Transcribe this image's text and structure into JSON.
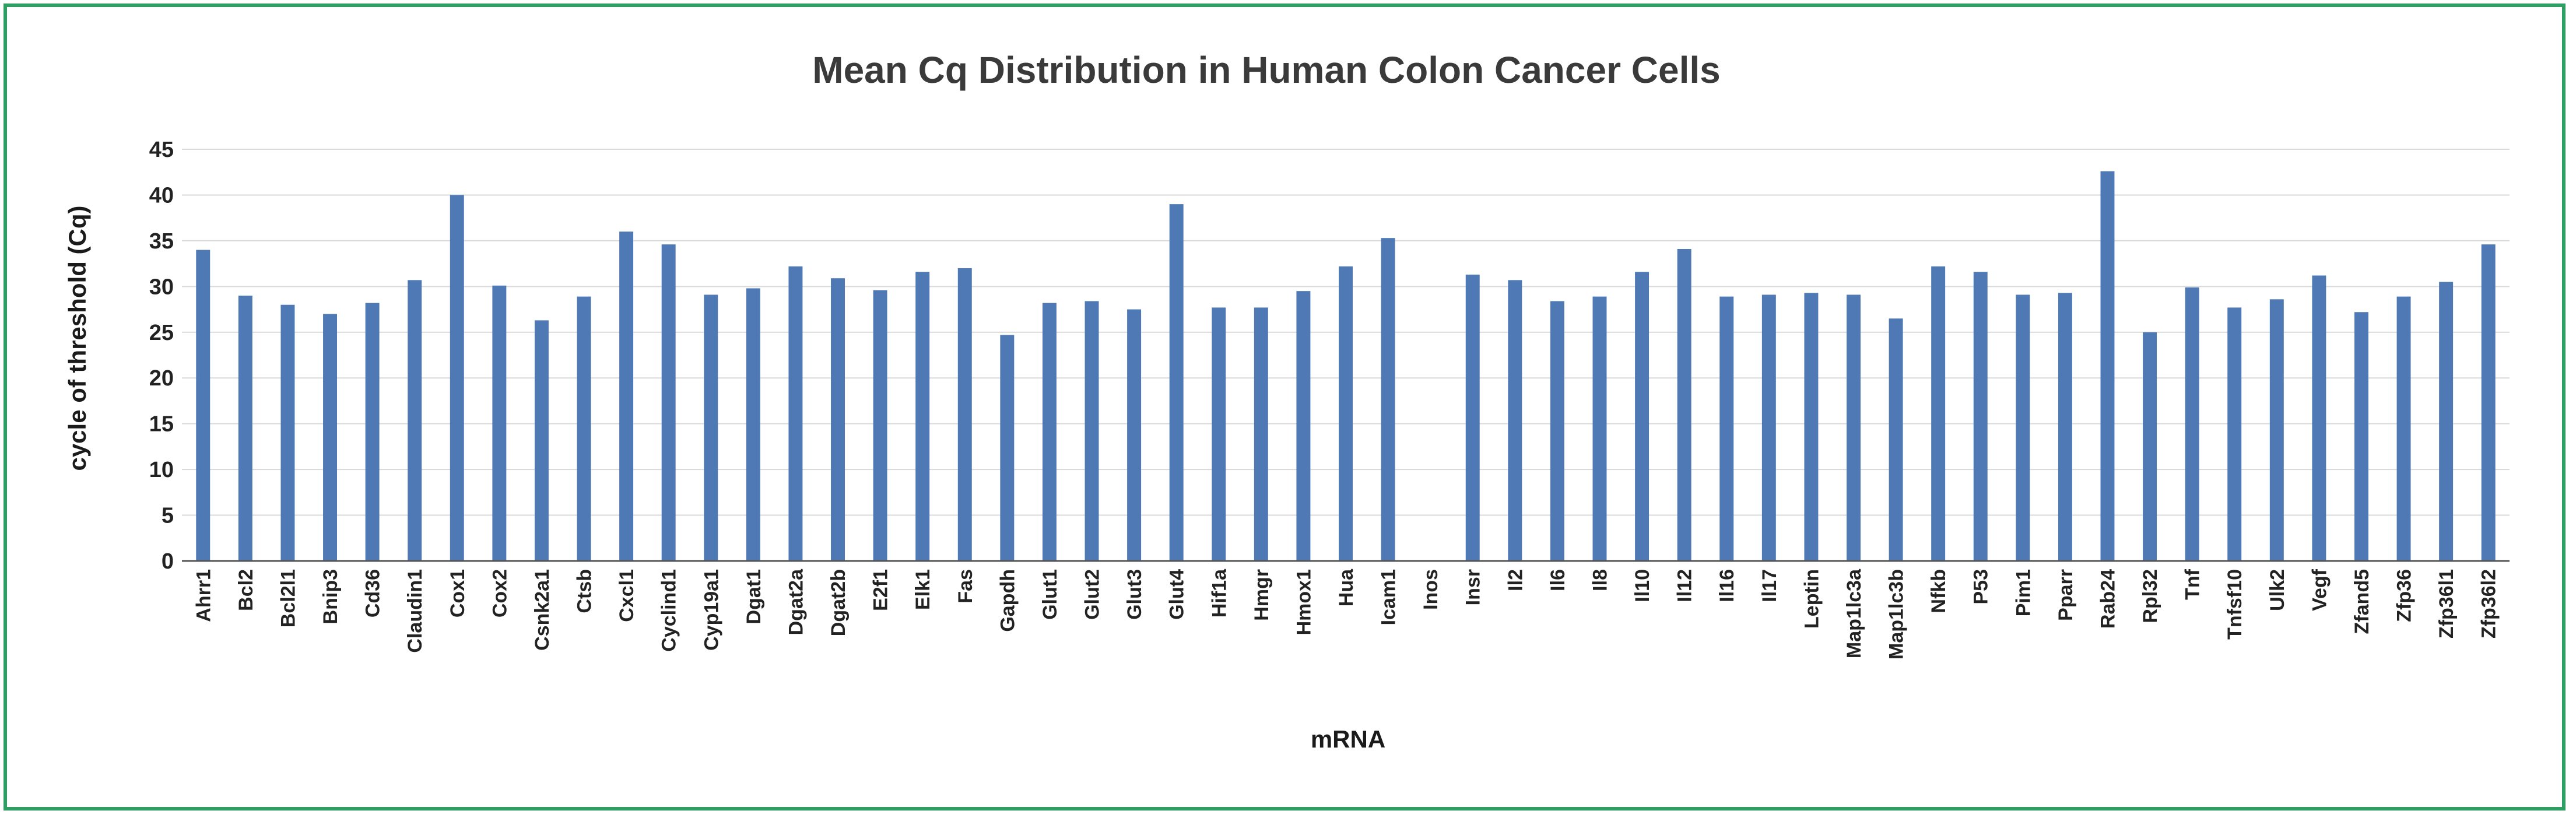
{
  "chart_data": {
    "type": "bar",
    "title": "Mean Cq Distribution in Human Colon Cancer Cells",
    "xlabel": "mRNA",
    "ylabel": "cycle of threshold (Cq)",
    "ylim": [
      0,
      45
    ],
    "yticks": [
      0,
      5,
      10,
      15,
      20,
      25,
      30,
      35,
      40,
      45
    ],
    "grid": true,
    "bar_color": "#4f79b4",
    "grid_color": "#d9d9d9",
    "axis_color": "#555555",
    "categories": [
      "Ahrr1",
      "Bcl2",
      "Bcl2l1",
      "Bnip3",
      "Cd36",
      "Claudin1",
      "Cox1",
      "Cox2",
      "Csnk2a1",
      "Ctsb",
      "Cxcl1",
      "Cyclind1",
      "Cyp19a1",
      "Dgat1",
      "Dgat2a",
      "Dgat2b",
      "E2f1",
      "Elk1",
      "Fas",
      "Gapdh",
      "Glut1",
      "Glut2",
      "Glut3",
      "Glut4",
      "Hif1a",
      "Hmgr",
      "Hmox1",
      "Hua",
      "Icam1",
      "Inos",
      "Insr",
      "Il2",
      "Il6",
      "Il8",
      "Il10",
      "Il12",
      "Il16",
      "Il17",
      "Leptin",
      "Map1lc3a",
      "Map1lc3b",
      "Nfkb",
      "P53",
      "Pim1",
      "Pparr",
      "Rab24",
      "Rpl32",
      "Tnf",
      "Tnfsf10",
      "Ulk2",
      "Vegf",
      "Zfand5",
      "Zfp36",
      "Zfp36l1",
      "Zfp36l2"
    ],
    "values": [
      34,
      29,
      28,
      27,
      28.2,
      30.7,
      40,
      30.1,
      26.3,
      28.9,
      36,
      34.6,
      29.1,
      29.8,
      32.2,
      30.9,
      29.6,
      31.6,
      32,
      24.7,
      28.2,
      28.4,
      27.5,
      39,
      27.7,
      27.7,
      29.5,
      32.2,
      35.3,
      0,
      31.3,
      30.7,
      28.4,
      28.9,
      31.6,
      34.1,
      28.9,
      29.1,
      29.3,
      29.1,
      26.5,
      32.2,
      31.6,
      29.1,
      29.3,
      42.6,
      25,
      29.9,
      27.7,
      28.6,
      31.2,
      27.2,
      28.9,
      30.5,
      34.6
    ]
  }
}
